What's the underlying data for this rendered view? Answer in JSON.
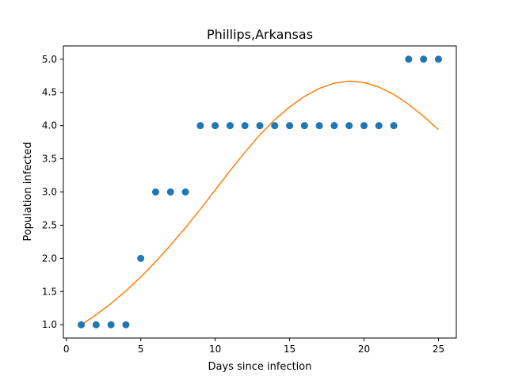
{
  "chart_data": {
    "type": "scatter",
    "title": "Phillips,Arkansas",
    "xlabel": "Days since infection",
    "ylabel": "Population infected",
    "xlim": [
      -0.2,
      26.2
    ],
    "ylim": [
      0.8,
      5.2
    ],
    "x_ticks": [
      0,
      5,
      10,
      15,
      20,
      25
    ],
    "x_tick_labels": [
      "0",
      "5",
      "10",
      "15",
      "20",
      "25"
    ],
    "y_ticks": [
      1.0,
      1.5,
      2.0,
      2.5,
      3.0,
      3.5,
      4.0,
      4.5,
      5.0
    ],
    "y_tick_labels": [
      "1.0",
      "1.5",
      "2.0",
      "2.5",
      "3.0",
      "3.5",
      "4.0",
      "4.5",
      "5.0"
    ],
    "grid": false,
    "series": [
      {
        "type": "scatter",
        "color": "#1f77b4",
        "x": [
          1,
          2,
          3,
          4,
          5,
          6,
          7,
          8,
          9,
          10,
          11,
          12,
          13,
          14,
          15,
          16,
          17,
          18,
          19,
          20,
          21,
          22,
          23,
          24,
          25
        ],
        "y": [
          1,
          1,
          1,
          1,
          2,
          3,
          3,
          3,
          4,
          4,
          4,
          4,
          4,
          4,
          4,
          4,
          4,
          4,
          4,
          4,
          4,
          4,
          5,
          5,
          5
        ]
      },
      {
        "type": "line",
        "color": "#ff7f0e",
        "x": [
          1,
          2,
          3,
          4,
          5,
          6,
          7,
          8,
          9,
          10,
          11,
          12,
          13,
          14,
          15,
          16,
          17,
          18,
          19,
          20,
          21,
          22,
          23,
          24,
          25
        ],
        "y": [
          1.0,
          1.15,
          1.32,
          1.51,
          1.72,
          1.95,
          2.2,
          2.46,
          2.74,
          3.03,
          3.32,
          3.6,
          3.86,
          4.09,
          4.28,
          4.44,
          4.56,
          4.64,
          4.67,
          4.65,
          4.58,
          4.47,
          4.32,
          4.14,
          3.94
        ]
      }
    ]
  }
}
